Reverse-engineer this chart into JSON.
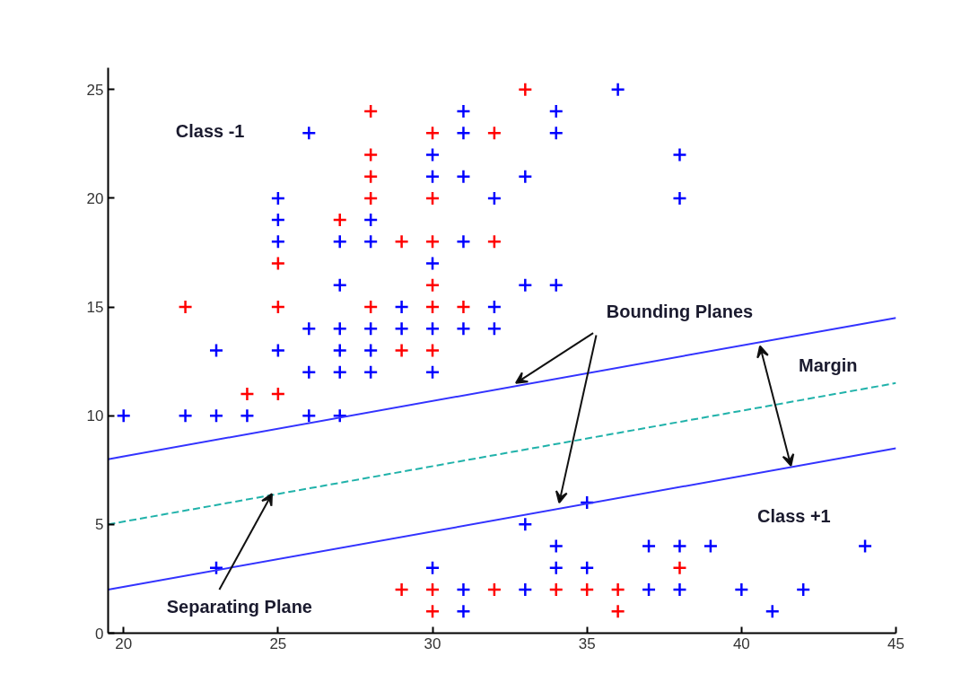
{
  "chart_data": {
    "type": "scatter",
    "xlim": [
      19.5,
      45
    ],
    "ylim": [
      0,
      26
    ],
    "xticks": [
      20,
      25,
      30,
      35,
      40,
      45
    ],
    "yticks": [
      0,
      5,
      10,
      15,
      20,
      25
    ],
    "grid": false,
    "series": [
      {
        "marker": "cross",
        "color": "#0000ff",
        "x": [
          20,
          22,
          23,
          23,
          24,
          25,
          25,
          25,
          25,
          26,
          26,
          26,
          26,
          27,
          27,
          27,
          27,
          27,
          27,
          28,
          28,
          28,
          28,
          28,
          29,
          29,
          30,
          30,
          30,
          30,
          30,
          31,
          31,
          31,
          31,
          31,
          32,
          32,
          32,
          33,
          33,
          34,
          34,
          34,
          36,
          38,
          38,
          23,
          30,
          31,
          31,
          33,
          35,
          34,
          37,
          38,
          39,
          44,
          34,
          35,
          33,
          37,
          38,
          40,
          42,
          41
        ],
        "values": [
          10,
          10,
          10,
          13,
          10,
          20,
          19,
          18,
          13,
          23,
          14,
          12,
          10,
          18,
          16,
          14,
          13,
          12,
          10,
          19,
          18,
          14,
          13,
          12,
          15,
          14,
          22,
          21,
          17,
          14,
          12,
          24,
          23,
          21,
          18,
          14,
          20,
          15,
          14,
          21,
          16,
          24,
          23,
          16,
          25,
          22,
          20,
          3,
          3,
          2,
          1,
          5,
          6,
          4,
          4,
          4,
          4,
          4,
          3,
          3,
          2,
          2,
          2,
          2,
          2,
          1
        ]
      },
      {
        "marker": "cross",
        "color": "#ff0000",
        "x": [
          22,
          24,
          25,
          25,
          25,
          27,
          28,
          28,
          28,
          28,
          28,
          29,
          29,
          30,
          30,
          30,
          30,
          30,
          30,
          31,
          32,
          32,
          33,
          29,
          30,
          32,
          34,
          35,
          36,
          30,
          36,
          38
        ],
        "values": [
          15,
          11,
          17,
          15,
          11,
          19,
          24,
          22,
          21,
          20,
          15,
          18,
          13,
          23,
          20,
          18,
          16,
          15,
          13,
          15,
          23,
          18,
          25,
          2,
          2,
          2,
          2,
          2,
          2,
          1,
          1,
          3
        ]
      },
      {
        "type": "line",
        "marker": "none",
        "color": "#3333ff",
        "line_style": "solid",
        "x": [
          19.5,
          45
        ],
        "values": [
          8,
          14.5
        ]
      },
      {
        "type": "line",
        "marker": "none",
        "color": "#20b2aa",
        "line_style": "dashed",
        "x": [
          19.5,
          45
        ],
        "values": [
          5,
          11.5
        ]
      },
      {
        "type": "line",
        "marker": "none",
        "color": "#3333ff",
        "line_style": "solid",
        "x": [
          19.5,
          45
        ],
        "values": [
          2,
          8.5
        ]
      }
    ],
    "annotations": [
      "Class -1",
      {
        "text": "Bounding Planes",
        "x": 32.7,
        "y": 11.5
      },
      {
        "text": "Margin",
        "x": 40.6,
        "y": 13.2
      },
      "Class +1",
      {
        "text": "Separating Plane",
        "x": 24.8,
        "y": 6.4
      }
    ]
  }
}
